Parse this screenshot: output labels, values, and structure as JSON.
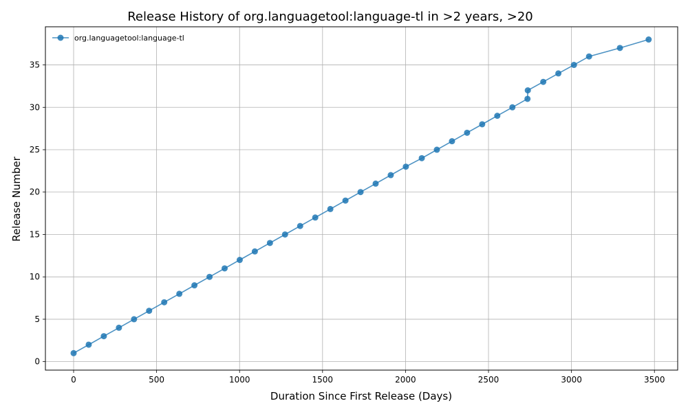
{
  "chart_data": {
    "type": "line",
    "title": "Release History of org.languagetool:language-tl in >2 years, >20",
    "xlabel": "Duration Since First Release (Days)",
    "ylabel": "Release Number",
    "xlim": [
      -170,
      3640
    ],
    "ylim": [
      -1,
      39.5
    ],
    "xticks": [
      0,
      500,
      1000,
      1500,
      2000,
      2500,
      3000,
      3500
    ],
    "yticks": [
      0,
      5,
      10,
      15,
      20,
      25,
      30,
      35
    ],
    "grid": true,
    "legend_position": "top-left",
    "colors": {
      "series": "#1f77b4"
    },
    "series": [
      {
        "name": "org.languagetool:language-tl",
        "marker": "circle",
        "x": [
          0,
          91,
          182,
          273,
          364,
          455,
          546,
          637,
          728,
          819,
          910,
          1001,
          1092,
          1183,
          1274,
          1365,
          1456,
          1547,
          1638,
          1729,
          1820,
          1911,
          2002,
          2098,
          2189,
          2280,
          2371,
          2462,
          2553,
          2644,
          2735,
          2737,
          2830,
          2921,
          3015,
          3106,
          3292,
          3465
        ],
        "y": [
          1,
          2,
          3,
          4,
          5,
          6,
          7,
          8,
          9,
          10,
          11,
          12,
          13,
          14,
          15,
          16,
          17,
          18,
          19,
          20,
          21,
          22,
          23,
          24,
          25,
          26,
          27,
          28,
          29,
          30,
          31,
          32,
          33,
          34,
          35,
          36,
          37,
          38
        ]
      }
    ]
  }
}
